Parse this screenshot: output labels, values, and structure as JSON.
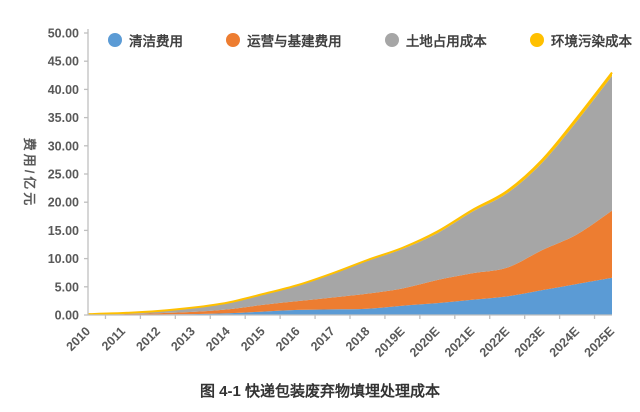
{
  "figure": {
    "title": "图 4-1 快递包装废弃物填埋处理成本",
    "ylabel": "费用/亿元"
  },
  "chart_data": {
    "type": "area",
    "stacked": true,
    "title": "图 4-1 快递包装废弃物填埋处理成本",
    "ylabel": "费用/亿元",
    "xlabel": "",
    "grid": false,
    "legend_position": "top",
    "ylim": [
      0,
      50
    ],
    "ytick_step": 5,
    "ytick_labels": [
      "0.00",
      "5.00",
      "10.00",
      "15.00",
      "20.00",
      "25.00",
      "30.00",
      "35.00",
      "40.00",
      "45.00",
      "50.00"
    ],
    "categories": [
      "2010",
      "2011",
      "2012",
      "2013",
      "2014",
      "2015",
      "2016",
      "2017",
      "2018",
      "2019E",
      "2020E",
      "2021E",
      "2022E",
      "2023E",
      "2024E",
      "2025E"
    ],
    "series": [
      {
        "name": "清洁费用",
        "color": "#5B9BD5",
        "values": [
          0.02,
          0.05,
          0.1,
          0.15,
          0.3,
          0.6,
          0.9,
          1.0,
          1.1,
          1.65,
          2.1,
          2.7,
          3.3,
          4.4,
          5.5,
          6.6
        ]
      },
      {
        "name": "运营与基建费用",
        "color": "#ED7D31",
        "values": [
          0.05,
          0.11,
          0.22,
          0.4,
          0.7,
          1.2,
          1.55,
          2.1,
          2.7,
          3.05,
          4.1,
          4.7,
          5.1,
          7.1,
          8.8,
          11.9
        ]
      },
      {
        "name": "土地占用成本",
        "color": "#A6A6A6",
        "values": [
          0.08,
          0.18,
          0.37,
          0.73,
          1.17,
          1.85,
          2.75,
          4.2,
          5.8,
          7.0,
          8.3,
          10.9,
          13.2,
          15.5,
          20.1,
          23.9
        ]
      },
      {
        "name": "环境污染成本",
        "color": "#FFC000",
        "values": [
          0.0,
          0.01,
          0.01,
          0.02,
          0.03,
          0.05,
          0.1,
          0.1,
          0.15,
          0.2,
          0.3,
          0.3,
          0.4,
          0.5,
          0.6,
          0.6
        ]
      }
    ],
    "axis_color": "#BFBFBF",
    "tick_label_color": "#595959",
    "totals": [
      0.15,
      0.35,
      0.7,
      1.3,
      2.2,
      3.7,
      5.3,
      7.4,
      9.75,
      11.9,
      14.8,
      18.6,
      22.0,
      27.5,
      35.0,
      43.0
    ]
  }
}
